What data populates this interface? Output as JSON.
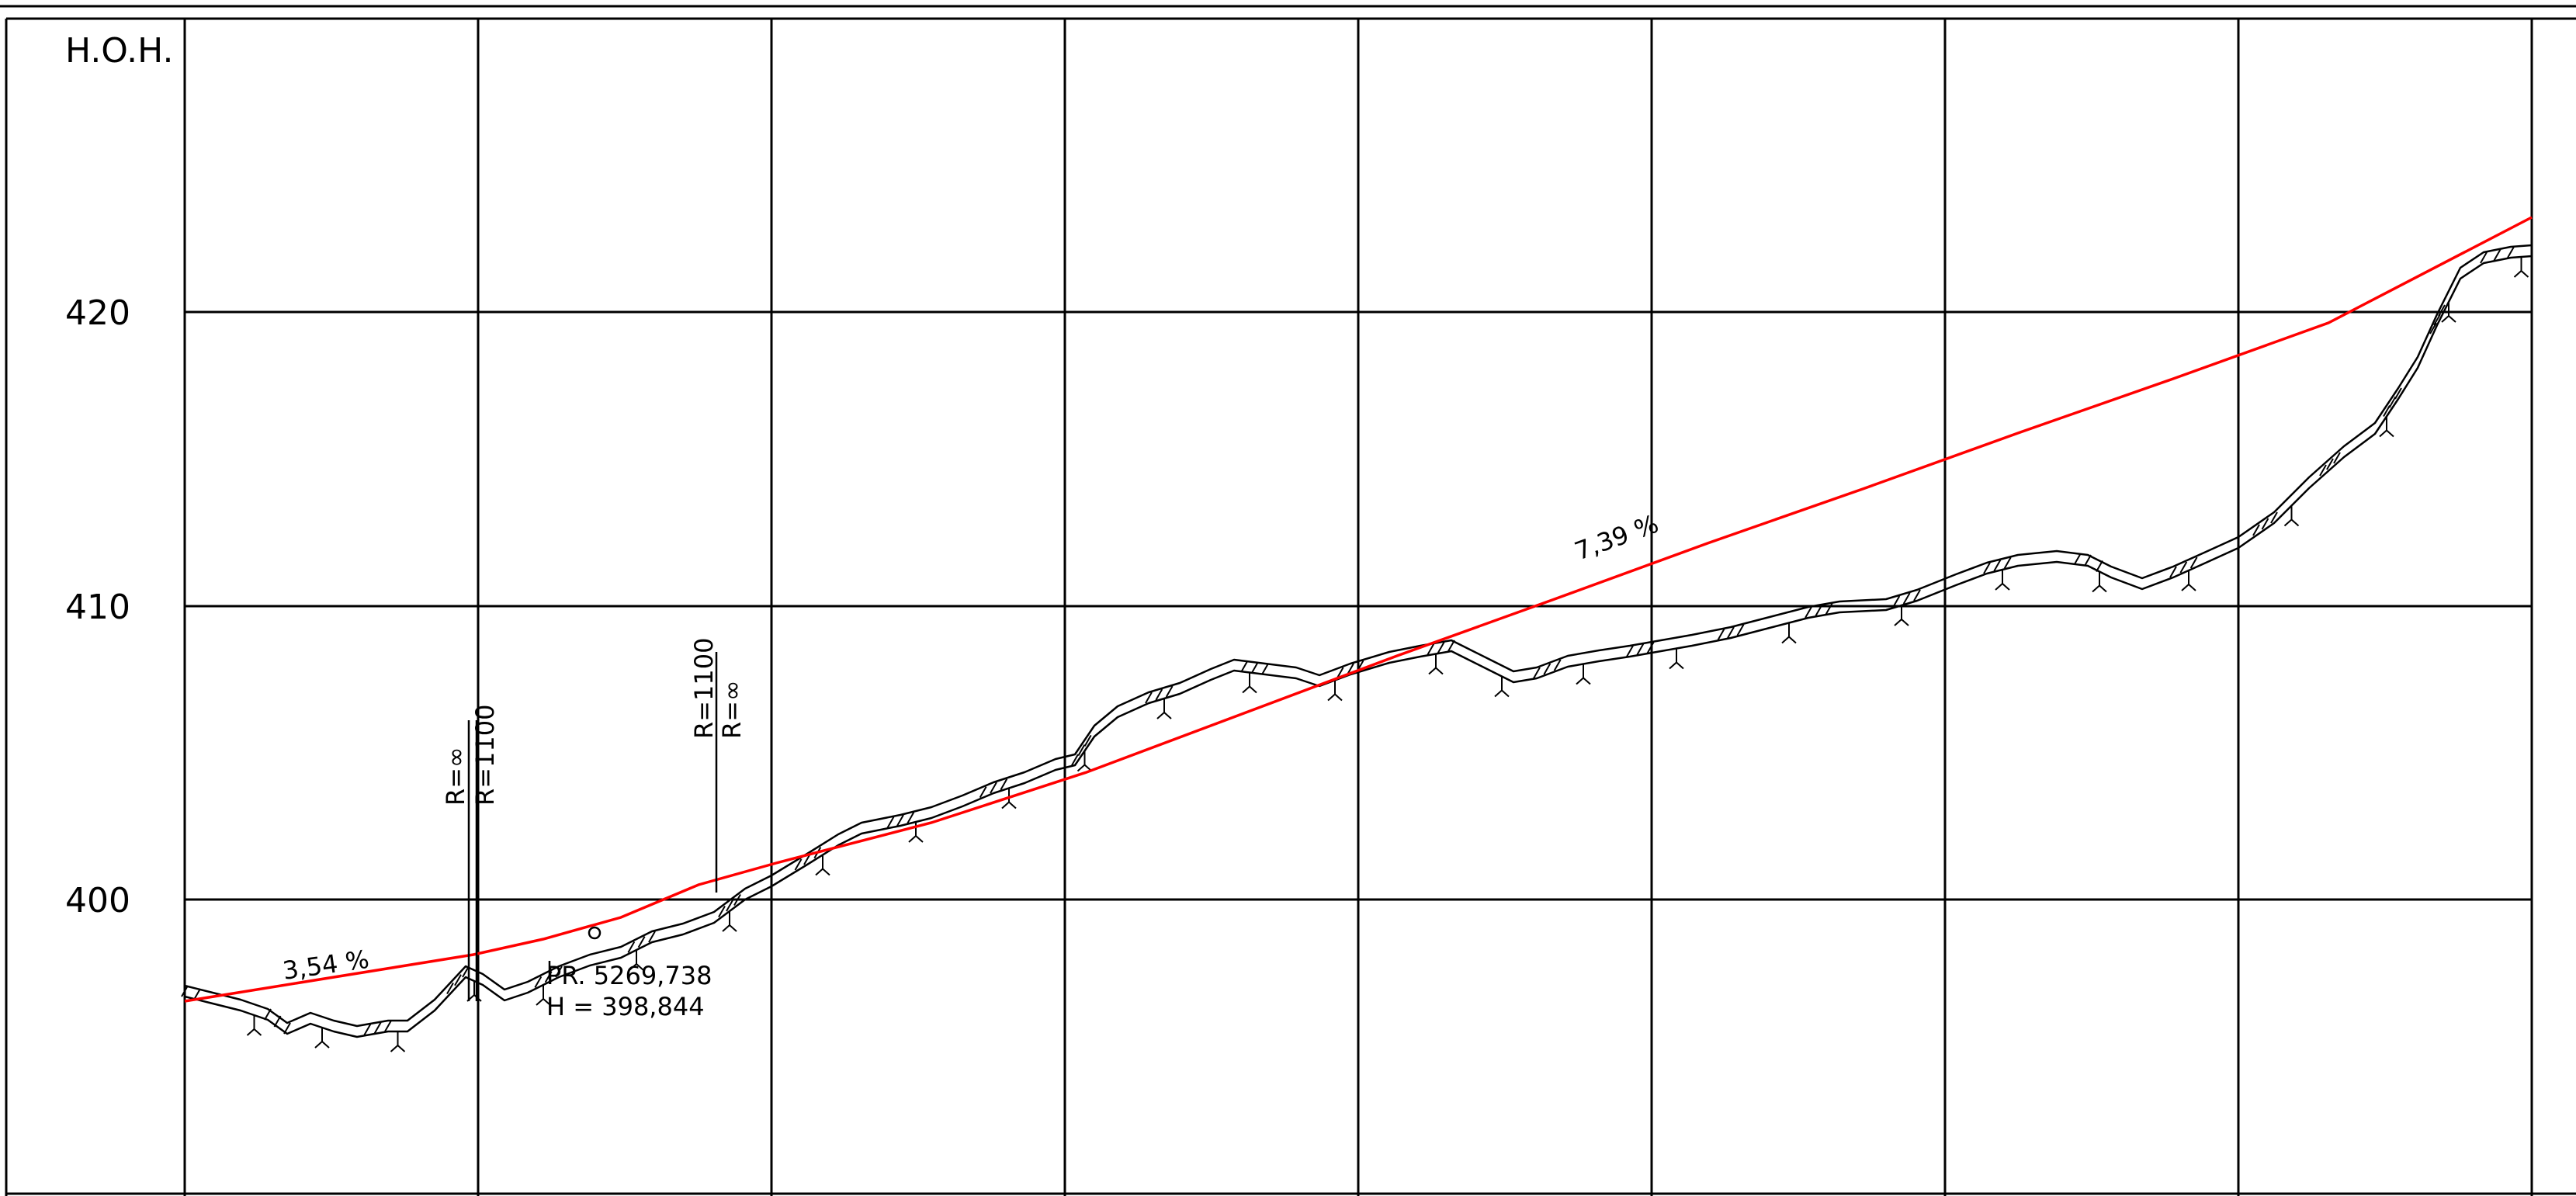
{
  "profile": {
    "axis_title": "H.O.H.",
    "y_labels": [
      "420",
      "410",
      "400"
    ],
    "slopes": [
      "3,54 %",
      "7,39 %"
    ],
    "curve_marks": [
      {
        "upper": "R=∞",
        "lower": "R=1100"
      },
      {
        "upper": "R=1100",
        "lower": "R=∞"
      }
    ],
    "vertex": {
      "station": "PR. 5269,738",
      "height": "H = 398,844"
    }
  },
  "colors": {
    "grid": "#000000",
    "terrain": "#000000",
    "grade_line": "#ff0000"
  }
}
